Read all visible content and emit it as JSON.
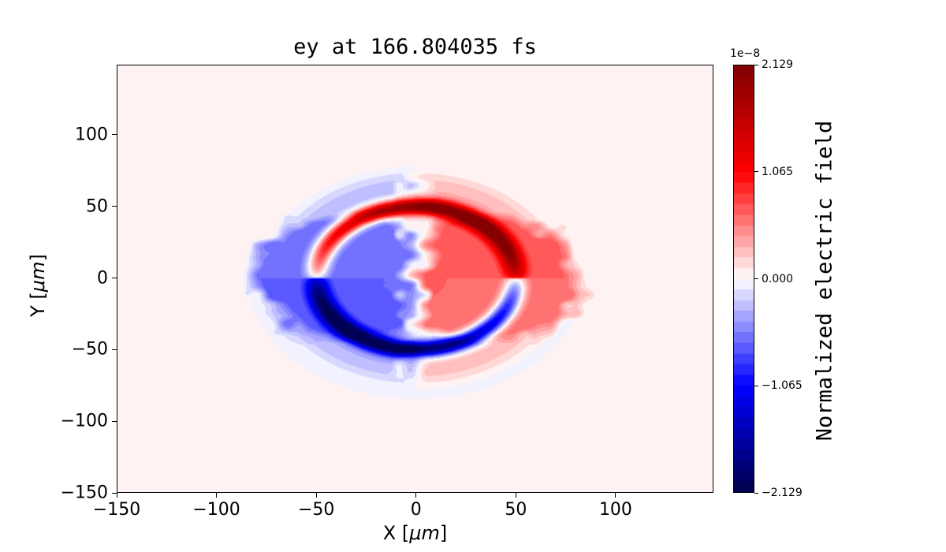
{
  "chart_data": {
    "type": "heatmap",
    "title": "ey at 166.804035 fs",
    "xlabel": {
      "prefix": "X [",
      "math": "μm",
      "suffix": "]"
    },
    "ylabel": {
      "prefix": "Y [",
      "math": "μm",
      "suffix": "]"
    },
    "xlim": [
      -150,
      149
    ],
    "ylim": [
      -150,
      149
    ],
    "xticks": {
      "values": [
        -150,
        -100,
        -50,
        0,
        50,
        100
      ],
      "labels": [
        "−150",
        "−100",
        "−50",
        "0",
        "50",
        "100"
      ]
    },
    "yticks": {
      "values": [
        -150,
        -100,
        -50,
        0,
        50,
        100
      ],
      "labels": [
        "−150",
        "−100",
        "−50",
        "0",
        "50",
        "100"
      ]
    },
    "colorbar": {
      "label": "Normalized electric field",
      "offset_text": "1e−8",
      "vmin": -2.129,
      "vmax": 2.129,
      "tick_values": [
        2.129,
        1.065,
        0.0,
        -1.065,
        -2.129
      ],
      "tick_labels": [
        "2.129",
        "1.065",
        "0.000",
        "−1.065",
        "−2.129"
      ],
      "colormap": "seismic",
      "levels": 40
    },
    "colormap_stops": [
      [
        0.0,
        [
          0,
          0,
          77
        ]
      ],
      [
        0.25,
        [
          0,
          0,
          255
        ]
      ],
      [
        0.5,
        [
          255,
          255,
          255
        ]
      ],
      [
        0.75,
        [
          255,
          0,
          0
        ]
      ],
      [
        1.0,
        [
          127,
          0,
          0
        ]
      ]
    ],
    "field_model": {
      "description": "Expanding dipole wavefront: thin intense arc shell of radius ~50 um (red/positive upper half, blue/negative lower half) superimposed on diffuse antisymmetric lobes (blue/negative left, red/positive right) with a ragged white zero band near x=0; field ~0 (white) elsewhere.",
      "peak_value": 2.129e-08,
      "shell": {
        "radius": 50,
        "sigma": 4,
        "amplitude": 1.0,
        "angular_power": 0.35
      },
      "lobes": {
        "centers_x": [
          -35,
          35
        ],
        "center_y": 0,
        "radius": 52,
        "edge_softness": 12,
        "amplitude": 0.3,
        "zero_band_halfwidth": 10,
        "noise_scale": 7,
        "noise_jitter": 14
      },
      "halo": {
        "inner": 40,
        "outer": 78,
        "softness": 12,
        "amplitude_factor": 0.45
      }
    }
  }
}
